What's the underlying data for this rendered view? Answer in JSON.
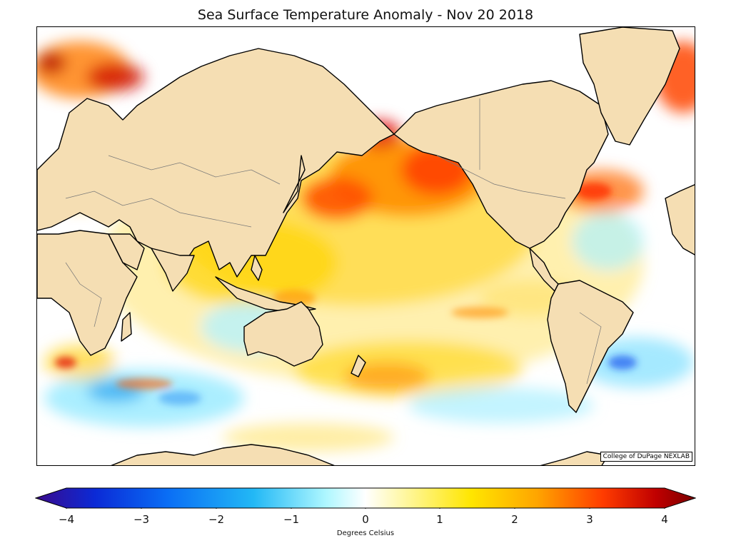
{
  "title": "Sea Surface Temperature Anomaly - Nov 20 2018",
  "credit": "College of DuPage NEXLAB",
  "colorbar": {
    "label": "Degrees Celsius",
    "min": -4,
    "max": 4,
    "ticks": [
      "−4",
      "−3",
      "−2",
      "−1",
      "0",
      "1",
      "2",
      "3",
      "4"
    ],
    "colors": [
      "#3a0a8c",
      "#0b2ad6",
      "#0a6ef5",
      "#22b8f5",
      "#aef7ff",
      "#ffffff",
      "#fff7a0",
      "#ffe600",
      "#ffa500",
      "#ff3c00",
      "#c00000",
      "#7a0000"
    ]
  },
  "map": {
    "projection": "Mercator, Pacific-centred",
    "land_color": "#f5deb3",
    "ocean_background": "#ffffff"
  }
}
